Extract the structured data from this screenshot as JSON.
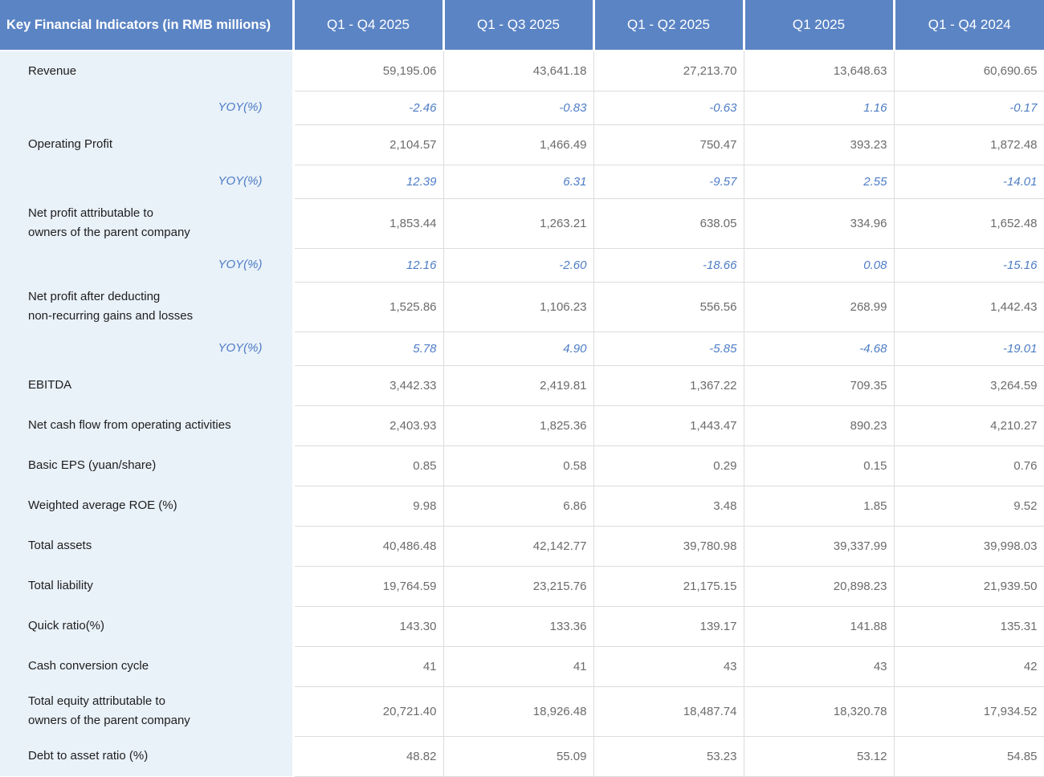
{
  "colors": {
    "header_bg": "#5B84C4",
    "header_text": "#FFFFFF",
    "label_column_bg": "#E9F1F9",
    "label_text": "#1E1E1E",
    "value_text": "#6B6B6B",
    "yoy_accent": "#4E7DC5",
    "grid_line": "#DCDCDC"
  },
  "chart_data": {
    "type": "table",
    "title": "Key Financial Indicators (in RMB millions)",
    "columns": [
      "Q1 - Q4 2025",
      "Q1 - Q3 2025",
      "Q1 - Q2 2025",
      "Q1 2025",
      "Q1 - Q4 2024"
    ],
    "rows": [
      {
        "label": "Revenue",
        "style": "metric",
        "values": [
          "59,195.06",
          "43,641.18",
          "27,213.70",
          "13,648.63",
          "60,690.65"
        ]
      },
      {
        "label": "YOY(%)",
        "style": "yoy",
        "values": [
          "-2.46",
          "-0.83",
          "-0.63",
          "1.16",
          "-0.17"
        ]
      },
      {
        "label": "Operating Profit",
        "style": "metric",
        "values": [
          "2,104.57",
          "1,466.49",
          "750.47",
          "393.23",
          "1,872.48"
        ]
      },
      {
        "label": "YOY(%)",
        "style": "yoy",
        "values": [
          "12.39",
          "6.31",
          "-9.57",
          "2.55",
          "-14.01"
        ]
      },
      {
        "label": "Net profit attributable to\nowners of the parent company",
        "style": "metric",
        "values": [
          "1,853.44",
          "1,263.21",
          "638.05",
          "334.96",
          "1,652.48"
        ]
      },
      {
        "label": "YOY(%)",
        "style": "yoy",
        "values": [
          "12.16",
          "-2.60",
          "-18.66",
          "0.08",
          "-15.16"
        ]
      },
      {
        "label": "Net profit after deducting\nnon-recurring gains and losses",
        "style": "metric",
        "values": [
          "1,525.86",
          "1,106.23",
          "556.56",
          "268.99",
          "1,442.43"
        ]
      },
      {
        "label": "YOY(%)",
        "style": "yoy",
        "values": [
          "5.78",
          "4.90",
          "-5.85",
          "-4.68",
          "-19.01"
        ]
      },
      {
        "label": "EBITDA",
        "style": "metric",
        "values": [
          "3,442.33",
          "2,419.81",
          "1,367.22",
          "709.35",
          "3,264.59"
        ]
      },
      {
        "label": "Net cash flow from operating activities",
        "style": "metric",
        "values": [
          "2,403.93",
          "1,825.36",
          "1,443.47",
          "890.23",
          "4,210.27"
        ]
      },
      {
        "label": "Basic EPS (yuan/share)",
        "style": "metric",
        "values": [
          "0.85",
          "0.58",
          "0.29",
          "0.15",
          "0.76"
        ]
      },
      {
        "label": "Weighted average ROE (%)",
        "style": "metric",
        "values": [
          "9.98",
          "6.86",
          "3.48",
          "1.85",
          "9.52"
        ]
      },
      {
        "label": "Total assets",
        "style": "metric",
        "values": [
          "40,486.48",
          "42,142.77",
          "39,780.98",
          "39,337.99",
          "39,998.03"
        ]
      },
      {
        "label": "Total liability",
        "style": "metric",
        "values": [
          "19,764.59",
          "23,215.76",
          "21,175.15",
          "20,898.23",
          "21,939.50"
        ]
      },
      {
        "label": "Quick ratio(%)",
        "style": "metric",
        "values": [
          "143.30",
          "133.36",
          "139.17",
          "141.88",
          "135.31"
        ]
      },
      {
        "label": "Cash conversion cycle",
        "style": "metric",
        "values": [
          "41",
          "41",
          "43",
          "43",
          "42"
        ]
      },
      {
        "label": "Total equity attributable to\nowners of the parent company",
        "style": "metric",
        "values": [
          "20,721.40",
          "18,926.48",
          "18,487.74",
          "18,320.78",
          "17,934.52"
        ]
      },
      {
        "label": "Debt to asset ratio (%)",
        "style": "metric",
        "values": [
          "48.82",
          "55.09",
          "53.23",
          "53.12",
          "54.85"
        ]
      }
    ]
  }
}
